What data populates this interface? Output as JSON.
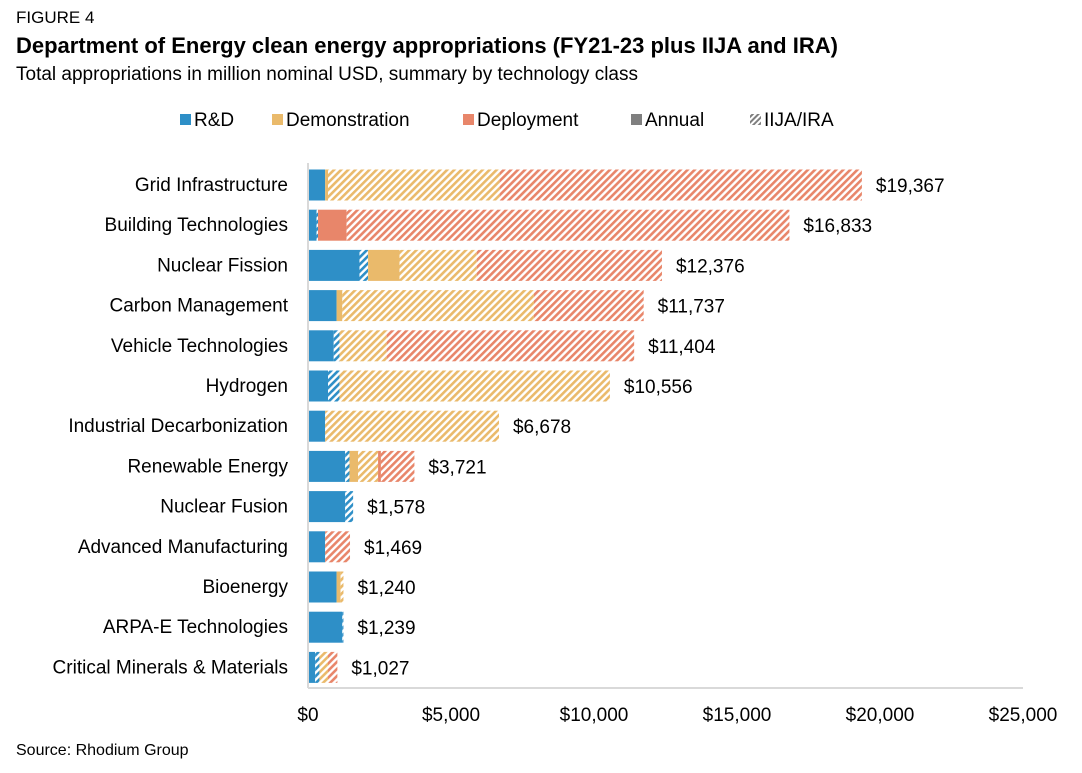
{
  "figure_label": "FIGURE 4",
  "source": "Source: Rhodium Group",
  "colors": {
    "R&D": "#2E8FC7",
    "Demonstration": "#EABA6B",
    "Deployment": "#E8866A",
    "Annual": "#7F7F7F",
    "axis": "#D9D9D9"
  },
  "chart_data": {
    "type": "bar",
    "orientation": "horizontal",
    "stacked": true,
    "title": "Department of Energy clean energy appropriations (FY21-23 plus IIJA and IRA)",
    "subtitle": "Total appropriations in million nominal USD, summary by technology class",
    "legend": {
      "position": "top",
      "entries": [
        {
          "label": "R&D",
          "color": "#2E8FC7",
          "pattern": "solid"
        },
        {
          "label": "Demonstration",
          "color": "#EABA6B",
          "pattern": "solid"
        },
        {
          "label": "Deployment",
          "color": "#E8866A",
          "pattern": "solid"
        },
        {
          "label": "Annual",
          "color": "#7F7F7F",
          "pattern": "solid"
        },
        {
          "label": "IIJA/IRA",
          "color": "#7F7F7F",
          "pattern": "hatched"
        }
      ]
    },
    "xlim": [
      0,
      25000
    ],
    "xticks": [
      0,
      5000,
      10000,
      15000,
      20000,
      25000
    ],
    "xtick_labels": [
      "$0",
      "$5,000",
      "$10,000",
      "$15,000",
      "$20,000",
      "$25,000"
    ],
    "grid": false,
    "categories": [
      "Grid Infrastructure",
      "Building Technologies",
      "Nuclear Fission",
      "Carbon Management",
      "Vehicle Technologies",
      "Hydrogen",
      "Industrial Decarbonization",
      "Renewable Energy",
      "Nuclear Fusion",
      "Advanced Manufacturing",
      "Bioenergy",
      "ARPA-E Technologies",
      "Critical Minerals & Materials"
    ],
    "totals": [
      19367,
      16833,
      12376,
      11737,
      11404,
      10556,
      6678,
      3721,
      1578,
      1469,
      1240,
      1239,
      1027
    ],
    "total_labels": [
      "$19,367",
      "$16,833",
      "$12,376",
      "$11,737",
      "$11,404",
      "$10,556",
      "$6,678",
      "$3,721",
      "$1,578",
      "$1,469",
      "$1,240",
      "$1,239",
      "$1,027"
    ],
    "series": [
      {
        "name": "R&D",
        "type": "Annual",
        "values": [
          600,
          300,
          1800,
          1000,
          900,
          700,
          600,
          1300,
          1300,
          600,
          1000,
          1200,
          250
        ]
      },
      {
        "name": "R&D",
        "type": "IIJA/IRA",
        "values": [
          0,
          50,
          300,
          0,
          200,
          400,
          0,
          150,
          278,
          0,
          0,
          39,
          150
        ]
      },
      {
        "name": "Demonstration",
        "type": "Annual",
        "values": [
          100,
          0,
          1100,
          200,
          0,
          0,
          0,
          300,
          0,
          0,
          140,
          0,
          0
        ]
      },
      {
        "name": "Demonstration",
        "type": "IIJA/IRA",
        "values": [
          6000,
          0,
          2700,
          6700,
          1650,
          9456,
          6078,
          700,
          0,
          0,
          100,
          0,
          300
        ]
      },
      {
        "name": "Deployment",
        "type": "Annual",
        "values": [
          0,
          1000,
          0,
          0,
          0,
          0,
          0,
          100,
          0,
          0,
          0,
          0,
          0
        ]
      },
      {
        "name": "Deployment",
        "type": "IIJA/IRA",
        "values": [
          12667,
          15483,
          6476,
          3837,
          8654,
          0,
          0,
          1171,
          0,
          869,
          0,
          0,
          327
        ]
      }
    ]
  }
}
